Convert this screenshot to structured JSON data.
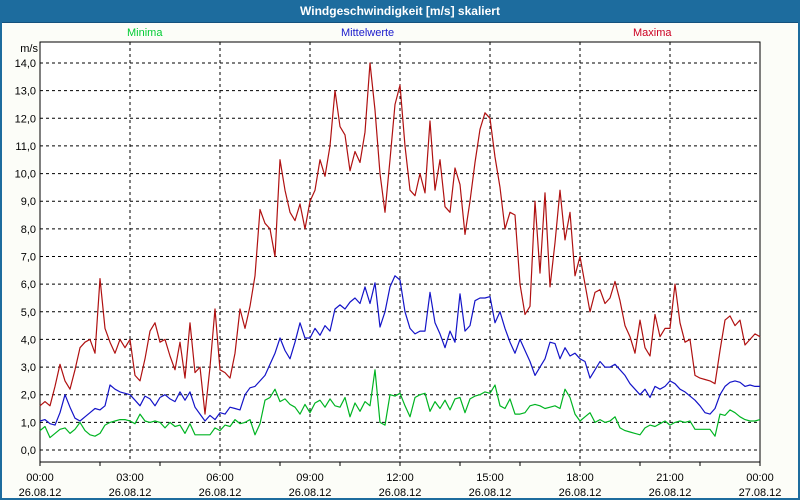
{
  "window": {
    "title": "Windgeschwindigkeit [m/s] skaliert"
  },
  "colors": {
    "titlebar_bg": "#1D6C9E",
    "titlebar_text": "#FFFFFF",
    "frame_border": "#1D6C9E",
    "panel_bg": "#FCFDF8",
    "plot_bg": "#FFFFFF",
    "grid": "#000000",
    "axis": "#000000"
  },
  "legend": [
    {
      "label": "Minima",
      "color": "#00CC33"
    },
    {
      "label": "Mittelwerte",
      "color": "#1A1ACC"
    },
    {
      "label": "Maxima",
      "color": "#CC0022"
    }
  ],
  "y_axis": {
    "unit": "m/s",
    "min": 0,
    "max": 14,
    "step": 1
  },
  "x_axis": {
    "tick_labels": [
      {
        "time": "00:00",
        "date": "26.08.12"
      },
      {
        "time": "03:00",
        "date": "26.08.12"
      },
      {
        "time": "06:00",
        "date": "26.08.12"
      },
      {
        "time": "09:00",
        "date": "26.08.12"
      },
      {
        "time": "12:00",
        "date": "26.08.12"
      },
      {
        "time": "15:00",
        "date": "26.08.12"
      },
      {
        "time": "18:00",
        "date": "26.08.12"
      },
      {
        "time": "21:00",
        "date": "26.08.12"
      },
      {
        "time": "00:00",
        "date": "27.08.12"
      }
    ]
  },
  "chart_data": {
    "type": "line",
    "title": "Windgeschwindigkeit [m/s] skaliert",
    "xlabel": "",
    "ylabel": "m/s",
    "ylim": [
      0,
      14
    ],
    "x_start": "26.08.12 00:00",
    "x_end": "27.08.12 00:00",
    "interval_minutes": 10,
    "grid": true,
    "legend_position": "top",
    "series": [
      {
        "name": "Minima",
        "color": "#00B422",
        "values": [
          0.7,
          0.85,
          0.45,
          0.6,
          0.75,
          0.8,
          0.6,
          0.75,
          1.0,
          0.7,
          0.55,
          0.5,
          0.6,
          0.9,
          1.0,
          1.05,
          1.1,
          1.1,
          1.05,
          0.95,
          1.3,
          1.05,
          1.0,
          1.05,
          1.0,
          0.8,
          1.0,
          0.85,
          0.9,
          0.6,
          0.95,
          0.55,
          0.55,
          0.55,
          0.55,
          0.8,
          0.7,
          0.9,
          0.85,
          1.1,
          0.95,
          1.0,
          1.1,
          0.55,
          0.95,
          1.8,
          1.9,
          2.2,
          1.75,
          1.85,
          1.65,
          1.55,
          1.3,
          1.65,
          1.35,
          1.7,
          1.8,
          1.55,
          1.85,
          1.6,
          1.55,
          1.9,
          1.2,
          1.7,
          1.4,
          1.75,
          1.6,
          2.9,
          1.0,
          0.9,
          2.0,
          1.95,
          2.05,
          1.6,
          1.2,
          1.9,
          2.0,
          2.05,
          1.4,
          1.75,
          1.5,
          1.8,
          1.45,
          1.85,
          1.9,
          1.35,
          1.85,
          1.95,
          2.0,
          2.1,
          2.05,
          2.35,
          1.6,
          1.5,
          1.85,
          1.3,
          1.3,
          1.35,
          1.6,
          1.65,
          1.6,
          1.5,
          1.55,
          1.6,
          1.5,
          2.2,
          1.9,
          1.3,
          1.05,
          1.2,
          1.35,
          1.0,
          1.1,
          1.0,
          1.05,
          1.2,
          0.8,
          0.7,
          0.65,
          0.6,
          0.55,
          0.8,
          0.9,
          0.85,
          0.95,
          1.05,
          0.9,
          1.0,
          1.05,
          1.0,
          1.05,
          0.75,
          0.75,
          0.75,
          0.75,
          0.5,
          1.3,
          1.25,
          1.45,
          1.35,
          1.2,
          1.1,
          1.05,
          1.05,
          1.1
        ]
      },
      {
        "name": "Mittelwerte",
        "color": "#1414C8",
        "values": [
          1.05,
          1.1,
          0.95,
          0.9,
          1.35,
          2.0,
          1.55,
          1.15,
          1.05,
          1.2,
          1.35,
          1.5,
          1.45,
          1.6,
          2.35,
          2.2,
          2.1,
          2.05,
          2.0,
          1.8,
          1.6,
          1.95,
          1.85,
          1.6,
          1.9,
          2.0,
          1.85,
          1.75,
          2.1,
          1.8,
          2.1,
          1.55,
          1.3,
          1.05,
          1.25,
          1.1,
          1.35,
          1.3,
          1.55,
          1.5,
          1.45,
          2.0,
          2.25,
          2.3,
          2.5,
          2.7,
          3.1,
          3.5,
          4.05,
          3.6,
          3.3,
          3.9,
          4.6,
          4.05,
          4.05,
          4.4,
          4.15,
          4.5,
          4.3,
          5.1,
          5.25,
          5.1,
          5.35,
          5.5,
          5.3,
          5.9,
          5.3,
          6.05,
          4.45,
          5.0,
          5.9,
          6.3,
          6.15,
          5.0,
          4.4,
          4.2,
          4.3,
          4.3,
          5.7,
          4.6,
          4.2,
          3.7,
          4.3,
          3.9,
          5.65,
          4.3,
          4.5,
          5.4,
          5.5,
          5.5,
          5.55,
          4.6,
          5.0,
          4.4,
          3.9,
          3.5,
          4.0,
          3.6,
          3.2,
          2.7,
          3.0,
          3.3,
          3.9,
          3.85,
          3.3,
          3.7,
          3.4,
          3.5,
          3.3,
          3.2,
          2.6,
          2.9,
          3.2,
          3.0,
          3.0,
          3.1,
          2.9,
          2.7,
          2.4,
          2.2,
          2.0,
          2.2,
          1.9,
          2.3,
          2.2,
          2.3,
          2.5,
          2.4,
          2.2,
          2.1,
          1.95,
          1.8,
          1.6,
          1.35,
          1.3,
          1.5,
          2.0,
          2.3,
          2.45,
          2.5,
          2.45,
          2.3,
          2.35,
          2.3,
          2.3
        ]
      },
      {
        "name": "Maxima",
        "color": "#B01111",
        "values": [
          1.6,
          1.75,
          1.6,
          2.3,
          3.1,
          2.5,
          2.2,
          2.9,
          3.7,
          3.9,
          4.0,
          3.5,
          6.2,
          4.4,
          3.9,
          3.5,
          4.0,
          3.7,
          4.0,
          2.7,
          2.5,
          3.3,
          4.3,
          4.6,
          3.9,
          4.0,
          3.4,
          2.9,
          3.9,
          2.6,
          4.6,
          2.8,
          3.0,
          1.3,
          3.0,
          5.1,
          2.9,
          2.8,
          2.6,
          3.5,
          5.1,
          4.4,
          5.2,
          6.3,
          8.7,
          8.2,
          8.0,
          7.0,
          10.5,
          9.4,
          8.6,
          8.3,
          8.9,
          8.0,
          9.0,
          9.4,
          10.5,
          9.9,
          11.0,
          13.0,
          11.7,
          11.4,
          10.1,
          10.8,
          10.4,
          11.5,
          14.0,
          12.3,
          10.0,
          8.6,
          10.5,
          12.5,
          13.2,
          11.0,
          9.4,
          9.2,
          10.0,
          9.3,
          11.9,
          9.4,
          10.5,
          8.8,
          8.6,
          10.2,
          9.6,
          7.8,
          9.0,
          10.4,
          11.6,
          12.2,
          12.0,
          10.6,
          9.5,
          8.0,
          8.6,
          8.5,
          6.0,
          4.9,
          5.2,
          9.0,
          6.4,
          9.3,
          5.9,
          7.5,
          9.4,
          7.6,
          8.6,
          6.3,
          7.0,
          6.0,
          5.0,
          5.7,
          5.8,
          5.3,
          5.5,
          6.1,
          5.4,
          4.5,
          4.1,
          3.5,
          4.7,
          3.7,
          3.4,
          4.9,
          4.1,
          4.4,
          4.4,
          6.0,
          4.6,
          3.9,
          4.0,
          2.7,
          2.6,
          2.55,
          2.5,
          2.4,
          3.6,
          4.7,
          4.85,
          4.5,
          4.7,
          3.8,
          4.0,
          4.2,
          4.1
        ]
      }
    ]
  }
}
